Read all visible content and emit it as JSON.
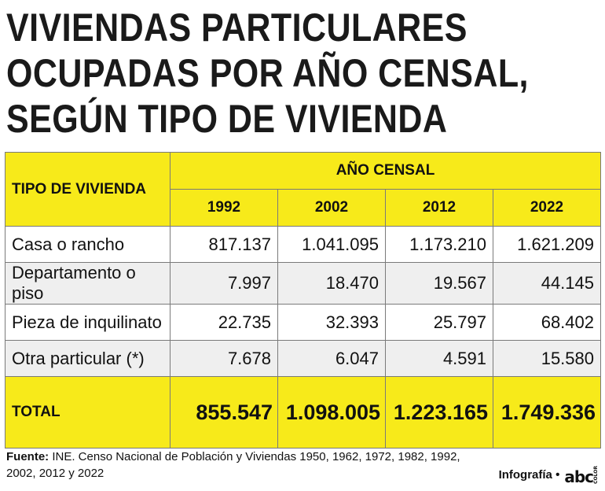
{
  "title_lines": [
    "VIVIENDAS PARTICULARES",
    "OCUPADAS POR AÑO CENSAL,",
    "SEGÚN TIPO DE VIVIENDA"
  ],
  "table": {
    "col_header_label": "TIPO DE VIVIENDA",
    "group_header": "AÑO CENSAL",
    "years": [
      "1992",
      "2002",
      "2012",
      "2022"
    ],
    "rows": [
      {
        "label": "Casa o rancho",
        "values": [
          "817.137",
          "1.041.095",
          "1.173.210",
          "1.621.209"
        ]
      },
      {
        "label": "Departamento o piso",
        "values": [
          "7.997",
          "18.470",
          "19.567",
          "44.145"
        ]
      },
      {
        "label": "Pieza de inquilinato",
        "values": [
          "22.735",
          "32.393",
          "25.797",
          "68.402"
        ]
      },
      {
        "label": "Otra particular (*)",
        "values": [
          "7.678",
          "6.047",
          "4.591",
          "15.580"
        ]
      }
    ],
    "total": {
      "label": "TOTAL",
      "values": [
        "855.547",
        "1.098.005",
        "1.223.165",
        "1.749.336"
      ]
    }
  },
  "source": {
    "label": "Fuente:",
    "text": " INE. Censo Nacional de Población y Viviendas 1950, 1962, 1972, 1982, 1992, 2002, 2012 y 2022"
  },
  "credit": {
    "text": "Infografía •",
    "logo": "abc",
    "logo_small": "COLOR"
  },
  "colors": {
    "highlight": "#f7ea1a",
    "stripe": "#efefef",
    "border": "#7a7a7a"
  },
  "chart_data": {
    "type": "table",
    "title": "VIVIENDAS PARTICULARES OCUPADAS POR AÑO CENSAL, SEGÚN TIPO DE VIVIENDA",
    "columns": [
      "TIPO DE VIVIENDA",
      "1992",
      "2002",
      "2012",
      "2022"
    ],
    "rows": [
      [
        "Casa o rancho",
        817137,
        1041095,
        1173210,
        1621209
      ],
      [
        "Departamento o piso",
        7997,
        18470,
        19567,
        44145
      ],
      [
        "Pieza de inquilinato",
        22735,
        32393,
        25797,
        68402
      ],
      [
        "Otra particular (*)",
        7678,
        6047,
        4591,
        15580
      ],
      [
        "TOTAL",
        855547,
        1098005,
        1223165,
        1749336
      ]
    ]
  }
}
